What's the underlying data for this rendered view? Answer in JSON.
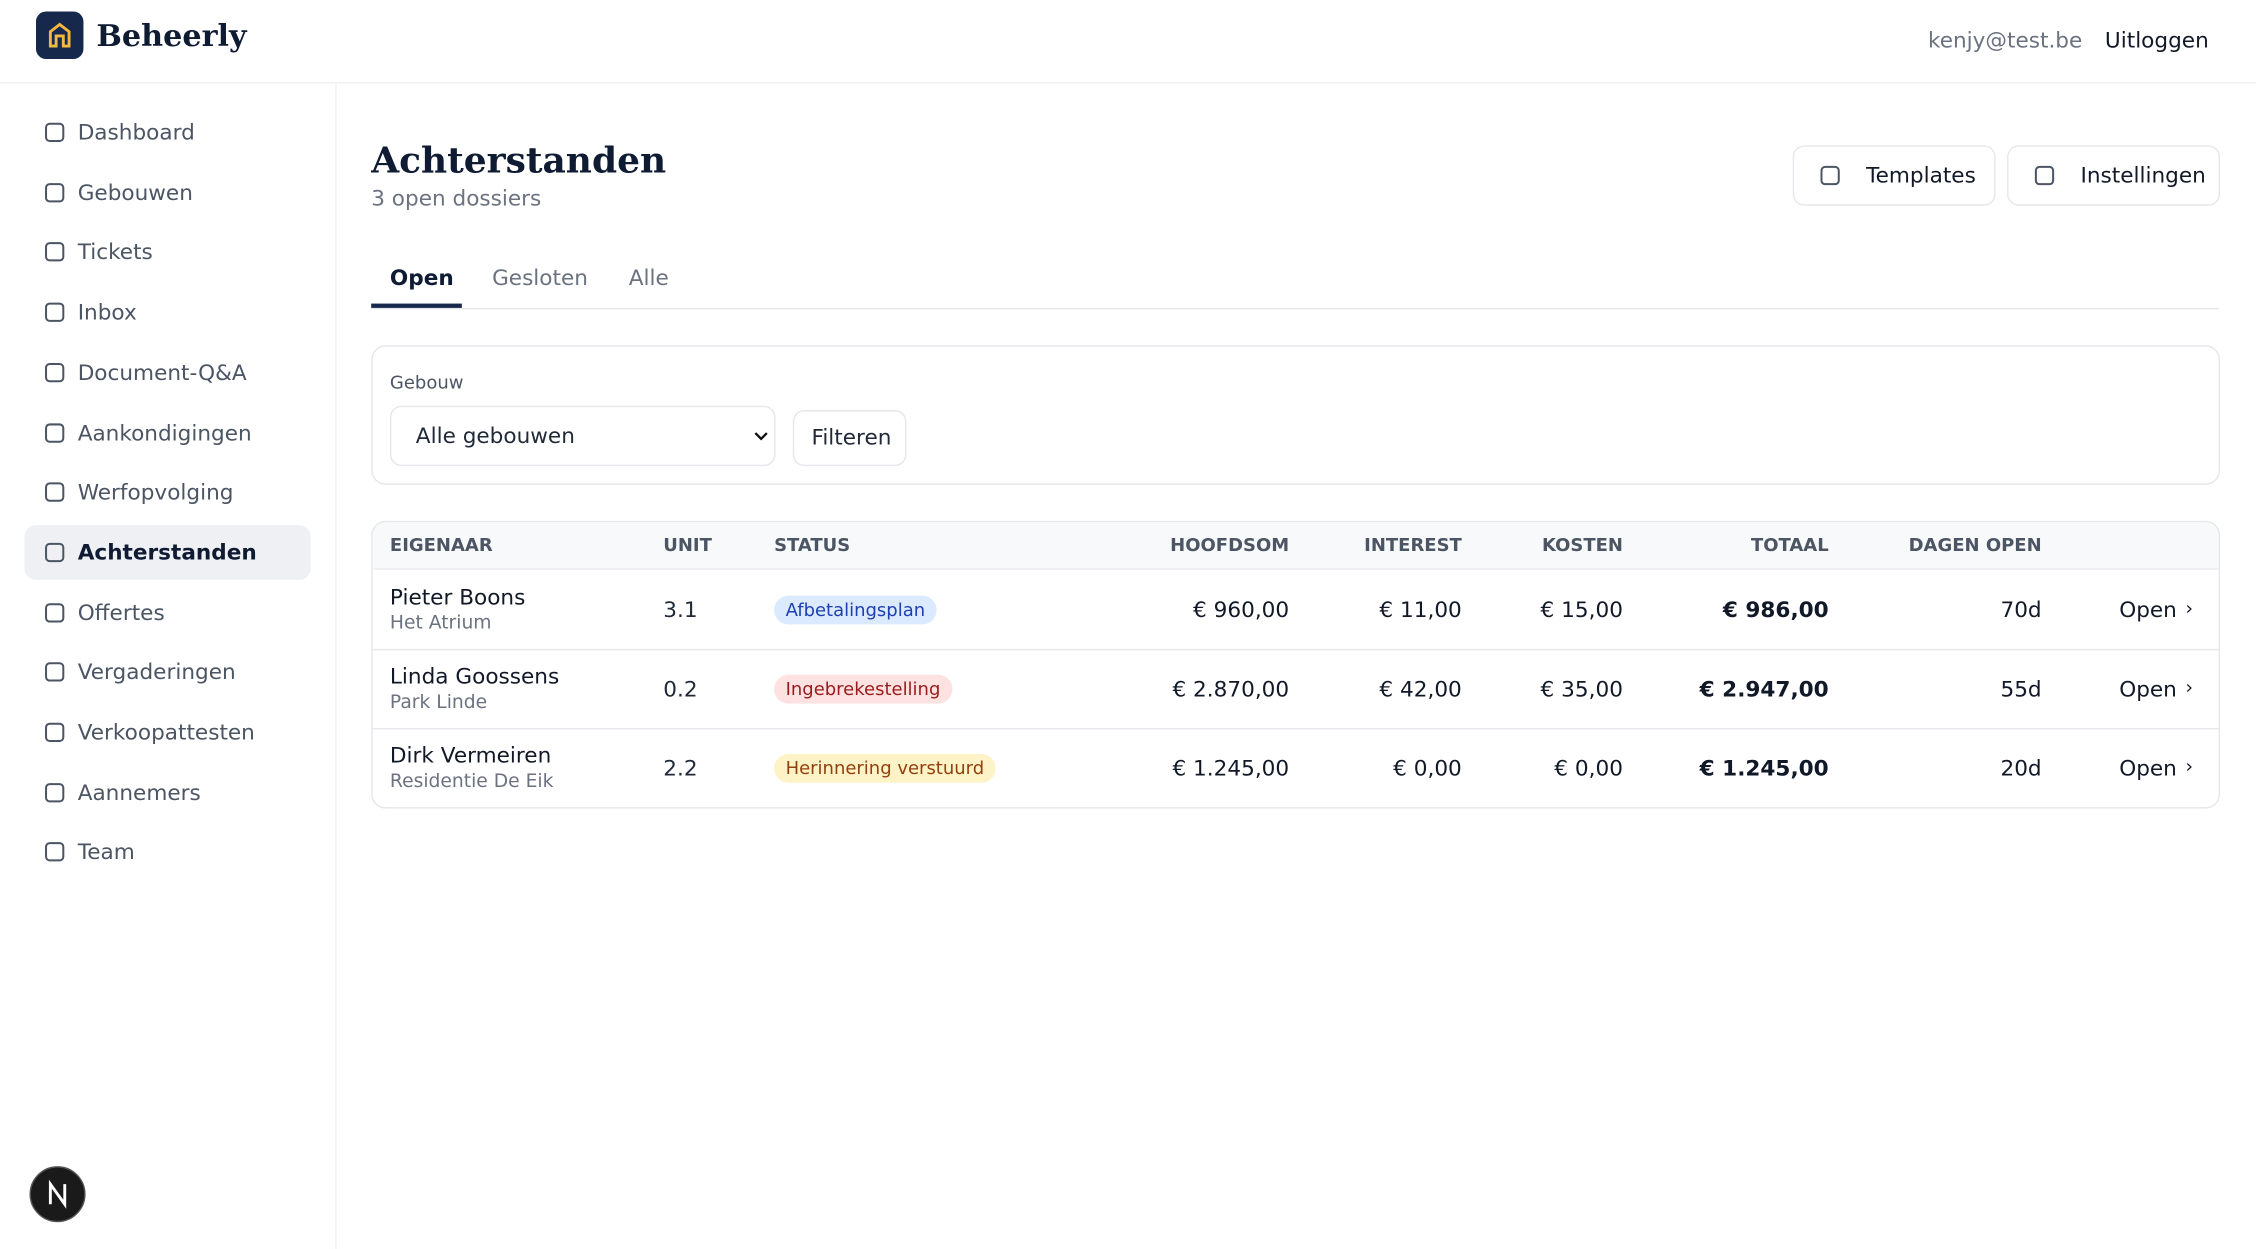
{
  "header": {
    "brand": "Beheerly",
    "user_email": "kenjy@test.be",
    "logout": "Uitloggen"
  },
  "sidebar": {
    "items": [
      "Dashboard",
      "Gebouwen",
      "Tickets",
      "Inbox",
      "Document-Q&A",
      "Aankondigingen",
      "Werfopvolging",
      "Achterstanden",
      "Offertes",
      "Vergaderingen",
      "Verkoopattesten",
      "Aannemers",
      "Team"
    ]
  },
  "page": {
    "title": "Achterstanden",
    "subtitle": "3 open dossiers",
    "actions": [
      "Templates",
      "Instellingen"
    ],
    "tabs": [
      "Open",
      "Gesloten",
      "Alle"
    ]
  },
  "filter": {
    "label": "Gebouw",
    "select": "Alle gebouwen",
    "button": "Filteren"
  },
  "table": {
    "columns": [
      "EIGENAAR",
      "UNIT",
      "STATUS",
      "HOOFDSOM",
      "INTEREST",
      "KOSTEN",
      "TOTAAL",
      "DAGEN OPEN"
    ],
    "rows": [
      {
        "owner": "Pieter Boons",
        "building": "Het Atrium",
        "unit": "3.1",
        "status": "Afbetalingsplan",
        "principal": "€ 960,00",
        "interest": "€ 11,00",
        "costs": "€ 15,00",
        "total": "€ 986,00",
        "days_open": "70d",
        "action": "Open"
      },
      {
        "owner": "Linda Goossens",
        "building": "Park Linde",
        "unit": "0.2",
        "status": "Ingebrekestelling",
        "principal": "€ 2.870,00",
        "interest": "€ 42,00",
        "costs": "€ 35,00",
        "total": "€ 2.947,00",
        "days_open": "55d",
        "action": "Open"
      },
      {
        "owner": "Dirk Vermeiren",
        "building": "Residentie De Eik",
        "unit": "2.2",
        "status": "Herinnering verstuurd",
        "principal": "€ 1.245,00",
        "interest": "€ 0,00",
        "costs": "€ 0,00",
        "total": "€ 1.245,00",
        "days_open": "20d",
        "action": "Open"
      }
    ]
  }
}
